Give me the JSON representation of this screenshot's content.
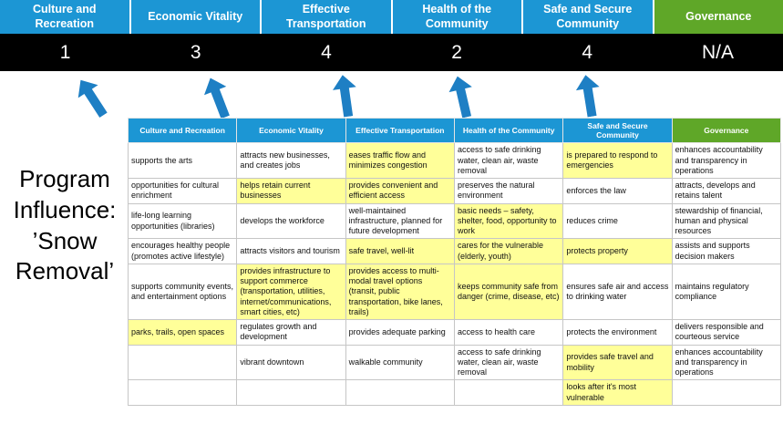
{
  "title": "Program Influence: ’Snow Removal’",
  "colors": {
    "header_blue": "#1C96D4",
    "header_green": "#5FA728",
    "highlight_yellow": "#FFFF99",
    "arrow_blue": "#1E7FC4",
    "score_bar": "#000000"
  },
  "scoreboard": {
    "columns": [
      {
        "id": "culture",
        "label": "Culture and Recreation",
        "score": "1"
      },
      {
        "id": "economic",
        "label": "Economic Vitality",
        "score": "3"
      },
      {
        "id": "transportation",
        "label": "Effective Transportation",
        "score": "4"
      },
      {
        "id": "health",
        "label": "Health of the Community",
        "score": "2"
      },
      {
        "id": "safe",
        "label": "Safe and Secure Community",
        "score": "4"
      },
      {
        "id": "governance",
        "label": "Governance",
        "score": "N/A",
        "green": true
      }
    ]
  },
  "arrows": {
    "icon": "up-arrow",
    "count": 5
  },
  "table": {
    "headers": [
      {
        "id": "culture",
        "label": "Culture and Recreation"
      },
      {
        "id": "economic",
        "label": "Economic Vitality"
      },
      {
        "id": "transportation",
        "label": "Effective Transportation"
      },
      {
        "id": "health",
        "label": "Health of the Community"
      },
      {
        "id": "safe",
        "label": "Safe and Secure Community"
      },
      {
        "id": "governance",
        "label": "Governance",
        "green": true
      }
    ],
    "rows": [
      [
        {
          "t": "supports the arts"
        },
        {
          "t": "attracts new businesses, and creates jobs"
        },
        {
          "t": "eases traffic flow and minimizes congestion",
          "h": true
        },
        {
          "t": "access to safe drinking water, clean air, waste removal"
        },
        {
          "t": "is prepared to respond to emergencies",
          "h": true
        },
        {
          "t": "enhances accountability and transparency in operations"
        }
      ],
      [
        {
          "t": "opportunities for cultural enrichment"
        },
        {
          "t": "helps retain current businesses",
          "h": true
        },
        {
          "t": "provides convenient and efficient access",
          "h": true
        },
        {
          "t": "preserves the natural environment"
        },
        {
          "t": "enforces the law"
        },
        {
          "t": "attracts, develops and retains talent"
        }
      ],
      [
        {
          "t": "life-long learning opportunities (libraries)"
        },
        {
          "t": "develops the workforce"
        },
        {
          "t": "well-maintained infrastructure, planned for future development"
        },
        {
          "t": "basic needs – safety, shelter, food, opportunity to work",
          "h": true
        },
        {
          "t": "reduces crime"
        },
        {
          "t": "stewardship of financial, human and physical resources"
        }
      ],
      [
        {
          "t": "encourages healthy people (promotes active lifestyle)"
        },
        {
          "t": "attracts visitors and tourism"
        },
        {
          "t": "safe travel, well-lit",
          "h": true
        },
        {
          "t": "cares for the vulnerable (elderly, youth)",
          "h": true
        },
        {
          "t": "protects property",
          "h": true
        },
        {
          "t": "assists and supports decision makers"
        }
      ],
      [
        {
          "t": "supports community events, and entertainment options"
        },
        {
          "t": "provides infrastructure to support commerce (transportation, utilities, internet/communications, smart cities, etc)",
          "h": true
        },
        {
          "t": "provides access to multi-modal travel options (transit, public transportation, bike lanes, trails)",
          "h": true
        },
        {
          "t": "keeps community safe from danger (crime, disease, etc)",
          "h": true
        },
        {
          "t": "ensures safe air and access to drinking water"
        },
        {
          "t": "maintains regulatory compliance"
        }
      ],
      [
        {
          "t": "parks, trails, open spaces",
          "h": true
        },
        {
          "t": "regulates growth and development"
        },
        {
          "t": "provides adequate parking"
        },
        {
          "t": "access to health care"
        },
        {
          "t": "protects the environment"
        },
        {
          "t": "delivers responsible and courteous service"
        }
      ],
      [
        {
          "t": ""
        },
        {
          "t": "vibrant downtown"
        },
        {
          "t": "walkable community"
        },
        {
          "t": "access to safe drinking water, clean air, waste removal"
        },
        {
          "t": "provides safe travel and mobility",
          "h": true
        },
        {
          "t": "enhances accountability and transparency in operations"
        }
      ],
      [
        {
          "t": ""
        },
        {
          "t": ""
        },
        {
          "t": ""
        },
        {
          "t": ""
        },
        {
          "t": "looks after it's most vulnerable",
          "h": true
        },
        {
          "t": ""
        }
      ]
    ]
  }
}
